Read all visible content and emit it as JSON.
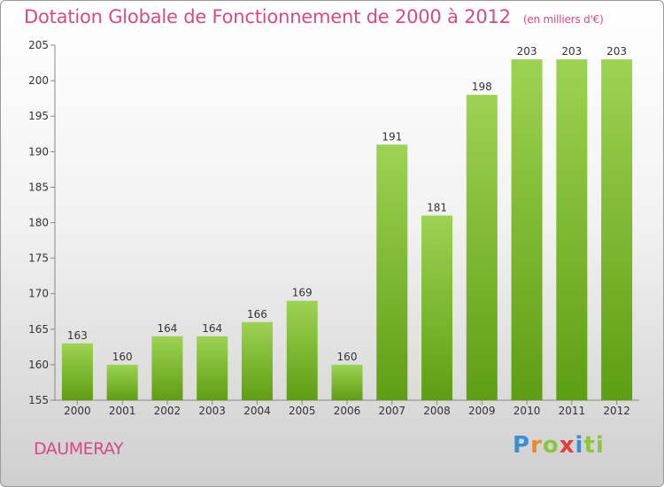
{
  "chart_data": {
    "type": "bar",
    "title": "Dotation Globale de Fonctionnement de 2000 à 2012",
    "subtitle": "(en milliers d'€)",
    "categories": [
      "2000",
      "2001",
      "2002",
      "2003",
      "2004",
      "2005",
      "2006",
      "2007",
      "2008",
      "2009",
      "2010",
      "2011",
      "2012"
    ],
    "values": [
      163,
      160,
      164,
      164,
      166,
      169,
      160,
      191,
      181,
      198,
      203,
      203,
      203
    ],
    "ylim": [
      155,
      205
    ],
    "yticks": [
      155,
      160,
      165,
      170,
      175,
      180,
      185,
      190,
      195,
      200,
      205
    ],
    "grid": false,
    "legend": "none",
    "bar_color_top": "#9dd352",
    "bar_color_bottom": "#5e9e12"
  },
  "place_name": "DAUMERAY",
  "logo": {
    "letters": [
      "P",
      "r",
      "o",
      "x",
      "i",
      "t",
      "i"
    ]
  }
}
